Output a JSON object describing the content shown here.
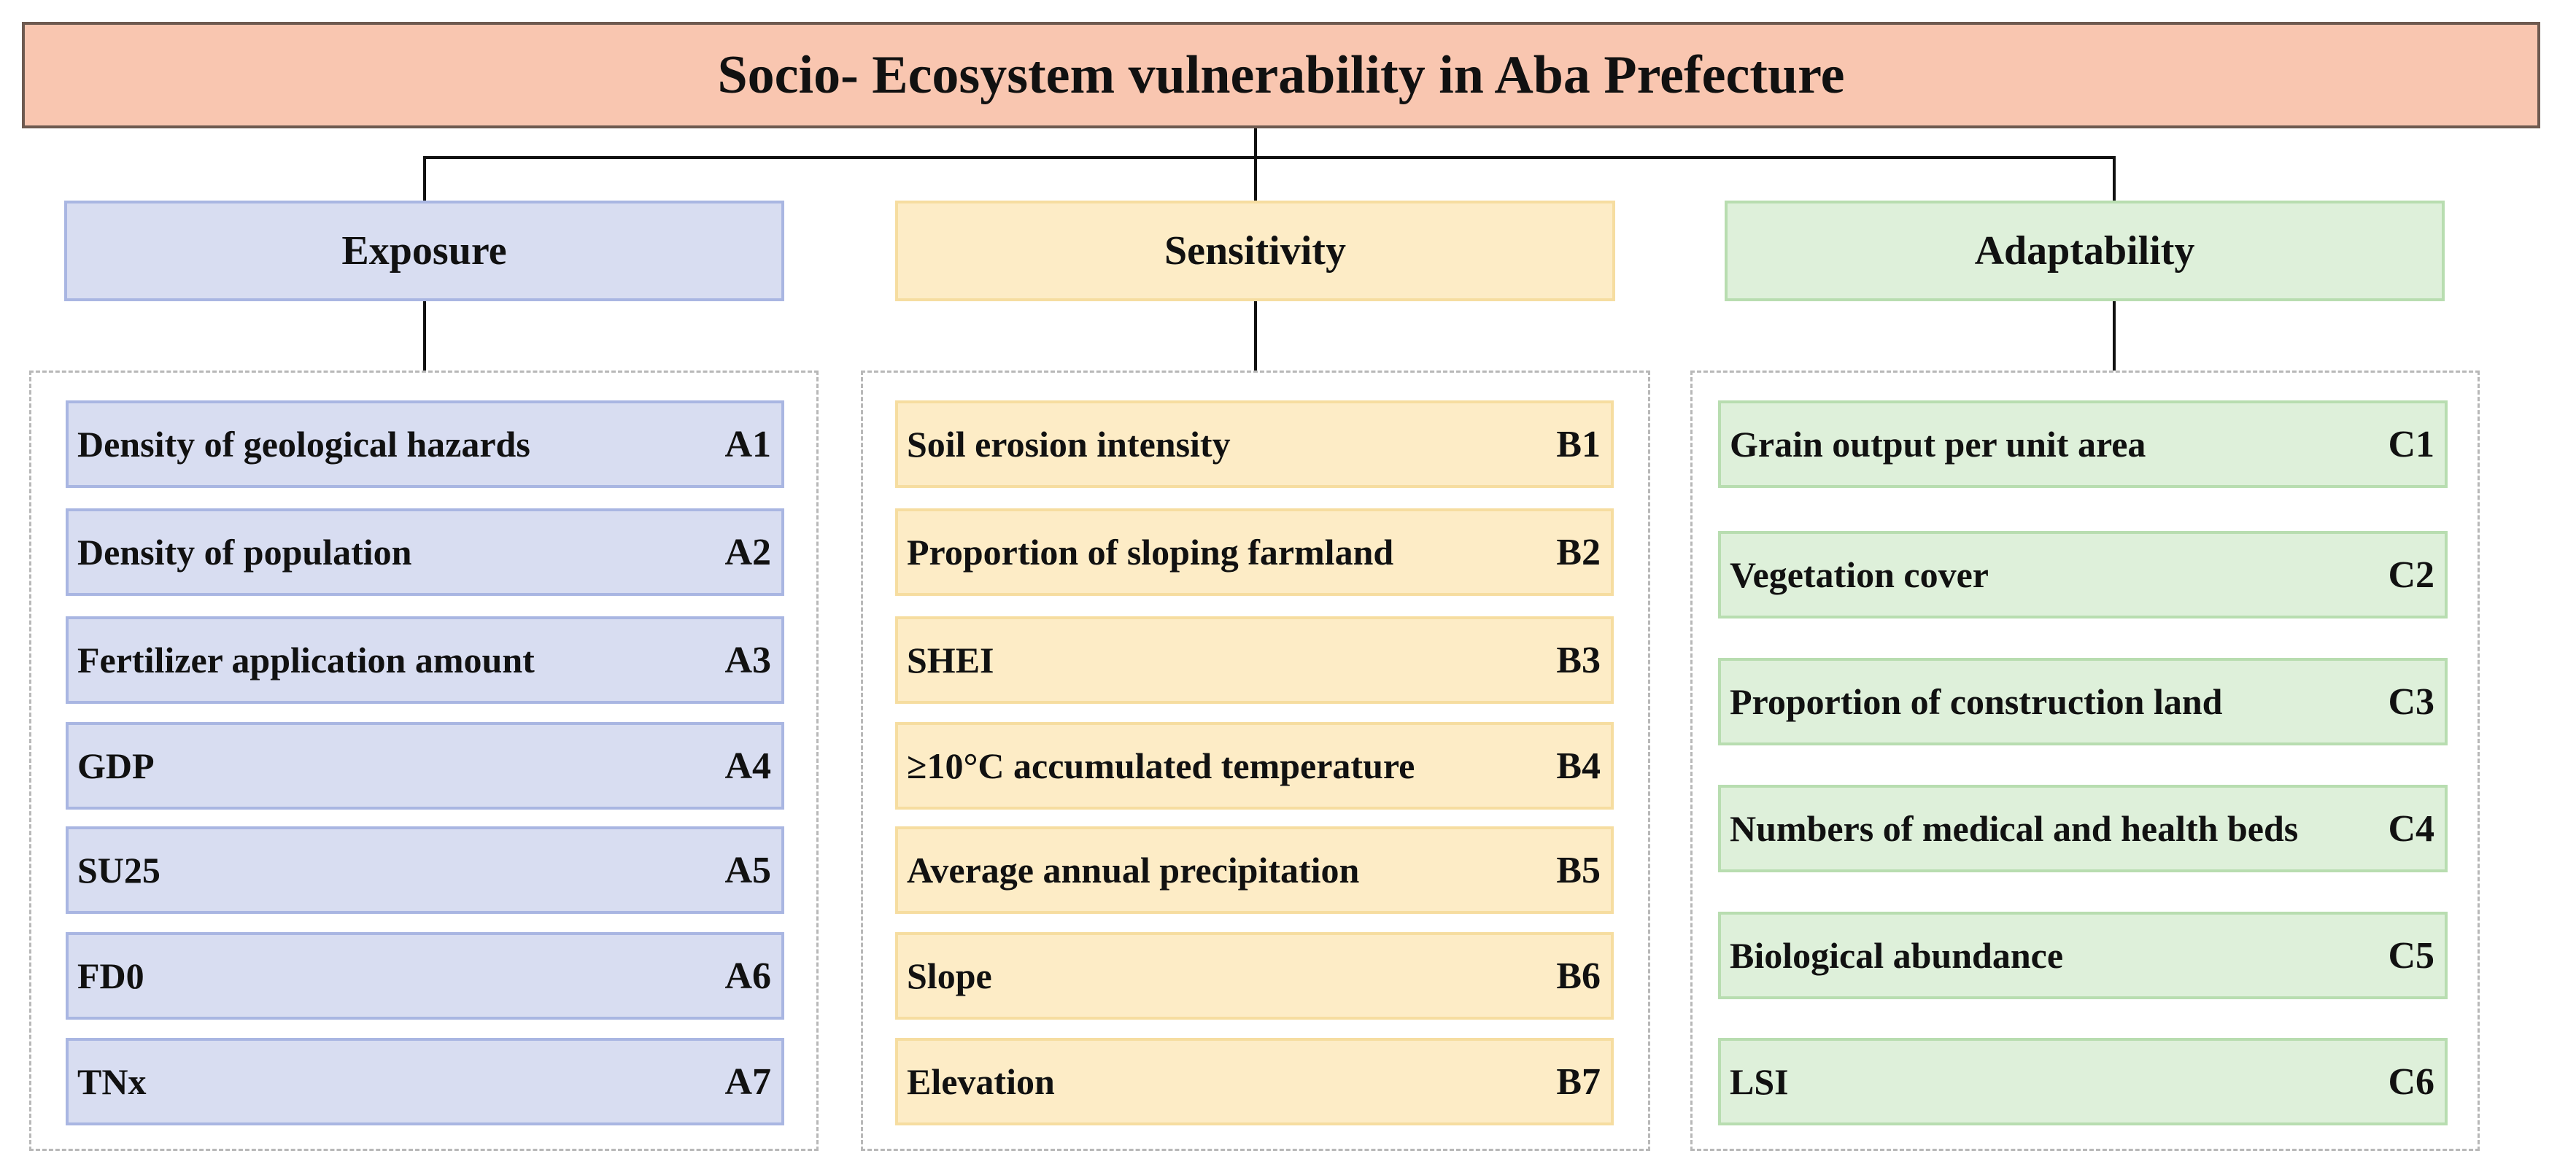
{
  "title": "Socio- Ecosystem vulnerability in Aba Prefecture",
  "categories": {
    "exposure": {
      "label": "Exposure",
      "color": "#d8ddf1",
      "items": [
        {
          "label": "Density of geological hazards",
          "code": "A1"
        },
        {
          "label": "Density of population",
          "code": "A2"
        },
        {
          "label": "Fertilizer application amount",
          "code": "A3"
        },
        {
          "label": "GDP",
          "code": "A4"
        },
        {
          "label": "SU25",
          "code": "A5"
        },
        {
          "label": "FD0",
          "code": "A6"
        },
        {
          "label": "TNx",
          "code": "A7"
        }
      ]
    },
    "sensitivity": {
      "label": "Sensitivity",
      "color": "#fdecc6",
      "items": [
        {
          "label": "Soil erosion intensity",
          "code": "B1"
        },
        {
          "label": "Proportion of sloping farmland",
          "code": "B2"
        },
        {
          "label": "SHEI",
          "code": "B3"
        },
        {
          "label": "≥10°C accumulated temperature",
          "code": "B4"
        },
        {
          "label": "Average annual precipitation",
          "code": "B5"
        },
        {
          "label": "Slope",
          "code": "B6"
        },
        {
          "label": "Elevation",
          "code": "B7"
        }
      ]
    },
    "adaptability": {
      "label": "Adaptability",
      "color": "#def0da",
      "items": [
        {
          "label": "Grain output per unit area",
          "code": "C1"
        },
        {
          "label": "Vegetation cover",
          "code": "C2"
        },
        {
          "label": "Proportion of construction land",
          "code": "C3"
        },
        {
          "label": "Numbers of medical and health beds",
          "code": "C4"
        },
        {
          "label": "Biological abundance",
          "code": "C5"
        },
        {
          "label": "LSI",
          "code": "C6"
        }
      ]
    }
  },
  "title_color": "#f9c6b0"
}
